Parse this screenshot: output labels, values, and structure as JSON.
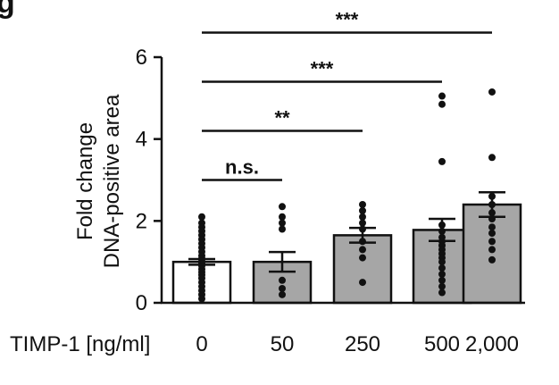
{
  "chart_data": {
    "type": "bar",
    "partial_panel_letter": "g",
    "categories": [
      "0",
      "50",
      "250",
      "500",
      "2,000"
    ],
    "x_prefix_label": "TIMP-1 [ng/ml]",
    "ylabel_line1": "Fold change",
    "ylabel_line2": "DNA-positive area",
    "ylim": [
      0,
      6
    ],
    "yticks": [
      0,
      2,
      4,
      6
    ],
    "ytick_labels": [
      "0",
      "2",
      "4",
      "6"
    ],
    "grid": false,
    "bar_colors": [
      "#ffffff",
      "#a6a6a6",
      "#a6a6a6",
      "#a6a6a6",
      "#a6a6a6"
    ],
    "bar_edge_color": "#111111",
    "point_color": "#111111",
    "values": [
      1.0,
      1.0,
      1.65,
      1.78,
      2.4
    ],
    "sem": [
      0.07,
      0.24,
      0.18,
      0.27,
      0.3
    ],
    "points": [
      [
        2.1,
        1.95,
        1.85,
        1.75,
        1.65,
        1.55,
        1.45,
        1.35,
        1.25,
        1.15,
        1.08,
        1.02,
        0.96,
        0.9,
        0.82,
        0.75,
        0.68,
        0.6,
        0.5,
        0.4,
        0.3,
        0.2,
        0.1
      ],
      [
        2.35,
        2.1,
        1.95,
        1.8,
        0.55,
        0.35,
        0.2
      ],
      [
        2.4,
        2.25,
        2.1,
        1.95,
        1.8,
        1.5,
        1.3,
        1.1,
        0.5
      ],
      [
        5.05,
        4.85,
        3.45,
        1.9,
        1.75,
        1.6,
        1.5,
        1.4,
        1.3,
        1.2,
        1.1,
        1.0,
        0.85,
        0.7,
        0.55,
        0.4,
        0.25
      ],
      [
        5.15,
        3.55,
        2.6,
        2.4,
        2.2,
        2.05,
        1.85,
        1.7,
        1.5,
        1.3,
        1.05
      ]
    ],
    "significance": [
      {
        "from": 0,
        "to": 1,
        "label": "n.s.",
        "y": 3.0
      },
      {
        "from": 0,
        "to": 2,
        "label": "**",
        "y": 4.2
      },
      {
        "from": 0,
        "to": 3,
        "label": "***",
        "y": 5.4
      },
      {
        "from": 0,
        "to": 4,
        "label": "***",
        "y": 6.6
      }
    ]
  }
}
